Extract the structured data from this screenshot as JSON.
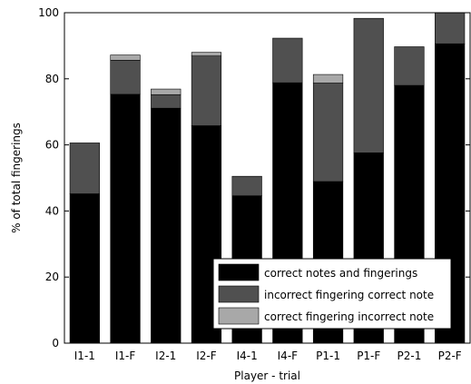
{
  "chart_data": {
    "type": "bar",
    "stacked": true,
    "categories": [
      "I1-1",
      "I1-F",
      "I2-1",
      "I2-F",
      "I4-1",
      "I4-F",
      "P1-1",
      "P1-F",
      "P2-1",
      "P2-F"
    ],
    "series": [
      {
        "name": "correct notes and fingerings",
        "color": "#000000",
        "values": [
          45.2,
          75.3,
          71.1,
          65.8,
          44.6,
          78.8,
          48.9,
          57.6,
          78.0,
          90.6
        ]
      },
      {
        "name": "incorrect fingering correct note",
        "color": "#505050",
        "values": [
          15.4,
          10.3,
          4.1,
          21.1,
          5.9,
          13.5,
          29.8,
          40.7,
          11.7,
          9.4
        ]
      },
      {
        "name": "correct fingering incorrect note",
        "color": "#a8a8a8",
        "values": [
          0,
          1.6,
          1.7,
          1.1,
          0,
          0,
          2.6,
          0,
          0,
          0
        ]
      }
    ],
    "xlabel": "Player - trial",
    "ylabel": "% of total fingerings",
    "ylim": [
      0,
      100
    ],
    "yticks": [
      0,
      20,
      40,
      60,
      80,
      100
    ],
    "grid": false,
    "legend_position": "bottom-right"
  }
}
